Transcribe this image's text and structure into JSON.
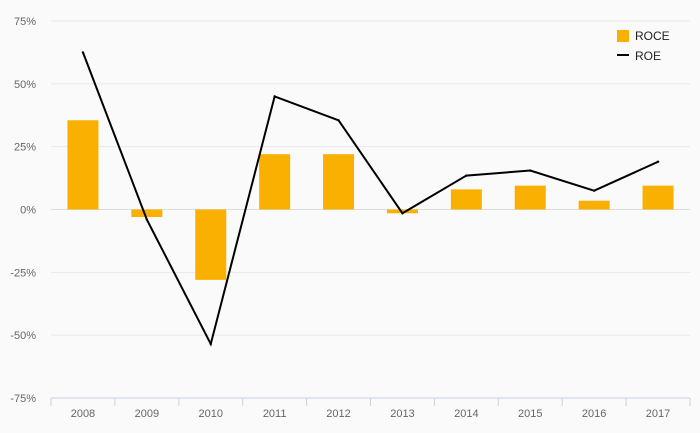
{
  "chart_data": {
    "type": "bar",
    "categories": [
      "2008",
      "2009",
      "2010",
      "2011",
      "2012",
      "2013",
      "2014",
      "2015",
      "2016",
      "2017"
    ],
    "series": [
      {
        "name": "ROCE",
        "type": "bar",
        "color": "#f9b000",
        "values": [
          35.5,
          -3.0,
          -28.0,
          22.0,
          22.0,
          -1.5,
          8.0,
          9.5,
          3.5,
          9.5
        ]
      },
      {
        "name": "ROE",
        "type": "line",
        "color": "#000000",
        "values": [
          62.5,
          -4.0,
          -53.5,
          45.0,
          35.5,
          -1.5,
          13.5,
          15.5,
          7.5,
          19.0
        ]
      }
    ],
    "ylim": [
      -75,
      75
    ],
    "yticks": [
      75,
      50,
      25,
      0,
      -25,
      -50,
      -75
    ],
    "ytick_labels": [
      "75%",
      "50%",
      "25%",
      "0%",
      "-25%",
      "-50%",
      "-75%"
    ],
    "title": "",
    "xlabel": "",
    "ylabel": "",
    "grid": true,
    "legend_position": "top-right"
  }
}
